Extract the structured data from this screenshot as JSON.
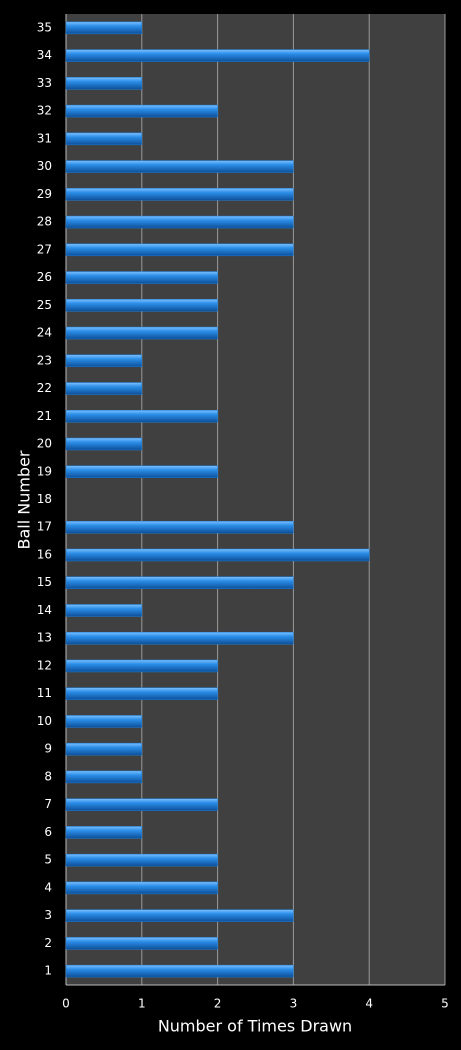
{
  "chart_data": {
    "type": "bar",
    "orientation": "horizontal",
    "x_label": "Number of Times Drawn",
    "y_label": "Ball Number",
    "categories": [
      "1",
      "2",
      "3",
      "4",
      "5",
      "6",
      "7",
      "8",
      "9",
      "10",
      "11",
      "12",
      "13",
      "14",
      "15",
      "16",
      "17",
      "18",
      "19",
      "20",
      "21",
      "22",
      "23",
      "24",
      "25",
      "26",
      "27",
      "28",
      "29",
      "30",
      "31",
      "32",
      "33",
      "34",
      "35"
    ],
    "values": [
      3,
      2,
      3,
      2,
      2,
      1,
      2,
      1,
      1,
      1,
      2,
      2,
      3,
      1,
      3,
      4,
      3,
      0,
      2,
      1,
      2,
      1,
      1,
      2,
      2,
      2,
      3,
      3,
      3,
      3,
      1,
      2,
      1,
      4,
      1
    ],
    "color": "#1e7fd8",
    "xlim": [
      0,
      5
    ],
    "xticks": [
      0,
      1,
      2,
      3,
      4,
      5
    ],
    "grid": true
  }
}
